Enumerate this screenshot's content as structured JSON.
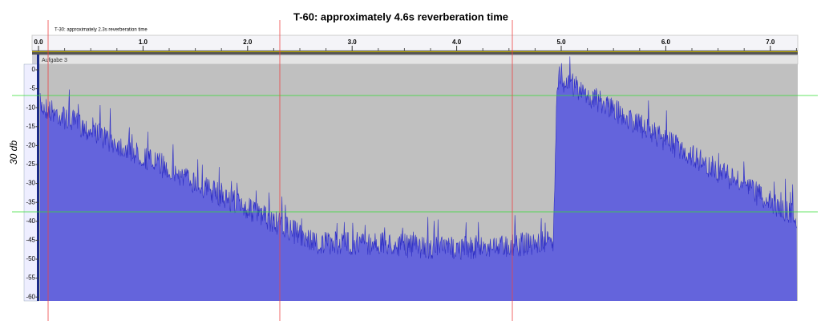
{
  "annotations": {
    "title": "T-60: approximately 4.6s reverberation time",
    "subtitle": "T-30: approximately 2.3s reverberation time",
    "y_label": "30 db"
  },
  "ruler": {
    "ticks": [
      "0.0",
      "1.0",
      "2.0",
      "3.0",
      "4.0",
      "5.0",
      "6.0",
      "7.0"
    ]
  },
  "track": {
    "name": "Aufgabe 3",
    "db_ticks": [
      "0",
      "-5",
      "-10",
      "-15",
      "-20",
      "-25",
      "-30",
      "-35",
      "-40",
      "-45",
      "-50",
      "-55",
      "-60"
    ]
  }
}
